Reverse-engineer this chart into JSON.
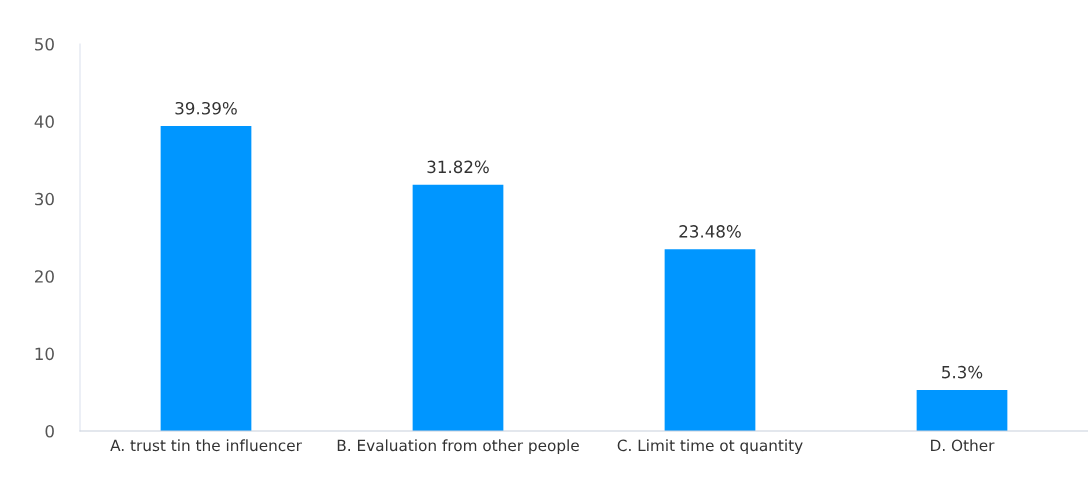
{
  "chart_data": {
    "type": "bar",
    "categories": [
      "A. trust tin the influencer",
      "B. Evaluation from other people",
      "C. Limit time ot quantity",
      "D. Other"
    ],
    "values": [
      39.39,
      31.82,
      23.48,
      5.3
    ],
    "value_labels": [
      "39.39%",
      "31.82%",
      "23.48%",
      "5.3%"
    ],
    "color": "#0096ff",
    "ylim": [
      0,
      50
    ],
    "yticks": [
      0,
      10,
      20,
      30,
      40,
      50
    ],
    "grid": false
  }
}
